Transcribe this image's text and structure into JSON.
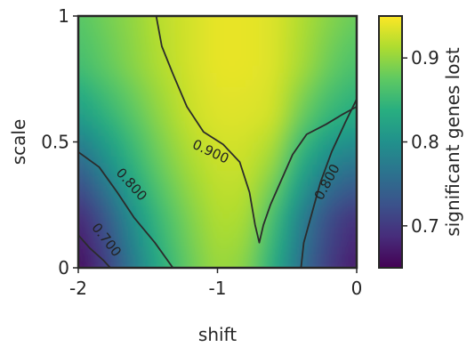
{
  "chart_data": {
    "type": "heatmap",
    "title": "",
    "xlabel": "shift",
    "ylabel": "scale",
    "xlim": [
      -2,
      0
    ],
    "ylim": [
      0,
      1
    ],
    "x_ticks": [
      -2,
      -1,
      0
    ],
    "x_tick_labels": [
      "-2",
      "-1",
      "0"
    ],
    "y_ticks": [
      0,
      0.5,
      1
    ],
    "y_tick_labels": [
      "0",
      "0.5",
      "1"
    ],
    "colormap": "viridis",
    "colorbar": {
      "label": "significant genes lost",
      "range": [
        0.65,
        0.95
      ],
      "ticks": [
        0.7,
        0.8,
        0.9
      ],
      "tick_labels": [
        "0.7",
        "0.8",
        "0.9"
      ]
    },
    "grid_x": [
      -2.0,
      -1.8,
      -1.6,
      -1.4,
      -1.2,
      -1.0,
      -0.8,
      -0.6,
      -0.4,
      -0.2,
      0.0
    ],
    "grid_y": [
      0.0,
      0.2,
      0.4,
      0.6,
      0.8,
      1.0
    ],
    "z": [
      [
        0.655,
        0.7,
        0.77,
        0.835,
        0.878,
        0.905,
        0.895,
        0.835,
        0.76,
        0.7,
        0.67
      ],
      [
        0.68,
        0.73,
        0.8,
        0.855,
        0.89,
        0.915,
        0.912,
        0.86,
        0.78,
        0.72,
        0.69
      ],
      [
        0.74,
        0.79,
        0.84,
        0.88,
        0.908,
        0.925,
        0.925,
        0.9,
        0.83,
        0.78,
        0.76
      ],
      [
        0.81,
        0.84,
        0.87,
        0.9,
        0.925,
        0.935,
        0.935,
        0.93,
        0.88,
        0.845,
        0.83
      ],
      [
        0.855,
        0.875,
        0.895,
        0.915,
        0.93,
        0.94,
        0.94,
        0.935,
        0.91,
        0.88,
        0.86
      ],
      [
        0.87,
        0.885,
        0.9,
        0.92,
        0.93,
        0.94,
        0.94,
        0.935,
        0.915,
        0.895,
        0.88
      ]
    ],
    "contours": [
      {
        "level": 0.7,
        "label": "0.700",
        "points": [
          [
            -2.0,
            0.13
          ],
          [
            -1.92,
            0.08
          ],
          [
            -1.82,
            0.03
          ],
          [
            -1.77,
            0.0
          ]
        ]
      },
      {
        "level": 0.8,
        "label": "0.800",
        "points": [
          [
            -2.0,
            0.46
          ],
          [
            -1.85,
            0.4
          ],
          [
            -1.72,
            0.3
          ],
          [
            -1.6,
            0.2
          ],
          [
            -1.45,
            0.1
          ],
          [
            -1.32,
            0.0
          ]
        ]
      },
      {
        "level": 0.8,
        "label": "0.800",
        "points": [
          [
            0.0,
            0.67
          ],
          [
            -0.08,
            0.58
          ],
          [
            -0.18,
            0.46
          ],
          [
            -0.26,
            0.34
          ],
          [
            -0.32,
            0.22
          ],
          [
            -0.38,
            0.1
          ],
          [
            -0.4,
            0.0
          ]
        ]
      },
      {
        "level": 0.9,
        "label": "0.900",
        "points": [
          [
            -1.44,
            1.0
          ],
          [
            -1.4,
            0.88
          ],
          [
            -1.32,
            0.77
          ],
          [
            -1.22,
            0.64
          ],
          [
            -1.1,
            0.54
          ],
          [
            -0.96,
            0.49
          ],
          [
            -0.84,
            0.42
          ],
          [
            -0.77,
            0.3
          ],
          [
            -0.73,
            0.17
          ],
          [
            -0.7,
            0.1
          ],
          [
            -0.67,
            0.17
          ],
          [
            -0.62,
            0.25
          ],
          [
            -0.54,
            0.35
          ],
          [
            -0.46,
            0.45
          ],
          [
            -0.36,
            0.53
          ],
          [
            -0.22,
            0.57
          ],
          [
            -0.1,
            0.61
          ],
          [
            0.0,
            0.64
          ]
        ]
      }
    ],
    "contour_labels": [
      {
        "text": "0.700",
        "x": -1.8,
        "y": 0.11,
        "angle": 52
      },
      {
        "text": "0.800",
        "x": -1.62,
        "y": 0.33,
        "angle": 48
      },
      {
        "text": "0.800",
        "x": -0.21,
        "y": 0.34,
        "angle": -62
      },
      {
        "text": "0.900",
        "x": -1.05,
        "y": 0.46,
        "angle": 25
      }
    ]
  }
}
